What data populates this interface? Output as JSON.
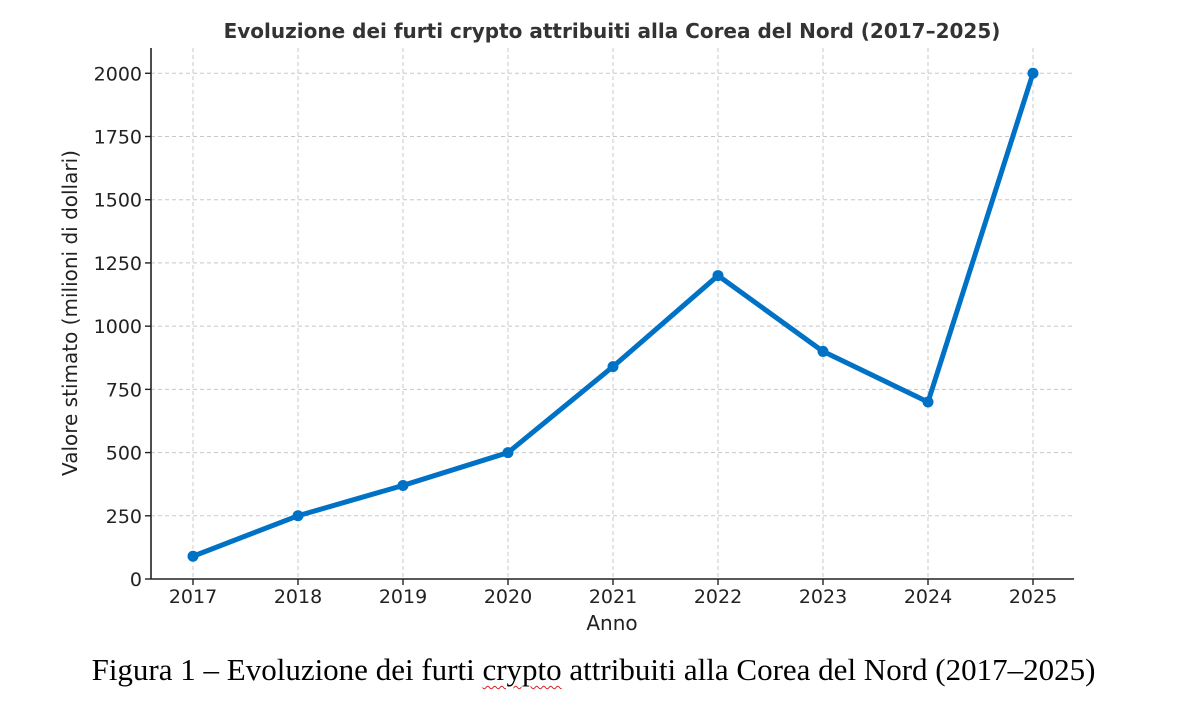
{
  "chart_data": {
    "type": "line",
    "title": "Evoluzione dei furti crypto attribuiti alla Corea del Nord (2017–2025)",
    "xlabel": "Anno",
    "ylabel": "Valore stimato (milioni di dollari)",
    "x": [
      "2017",
      "2018",
      "2019",
      "2020",
      "2021",
      "2022",
      "2023",
      "2024",
      "2025"
    ],
    "series": [
      {
        "values": [
          90,
          250,
          370,
          500,
          840,
          1200,
          900,
          700,
          2000
        ],
        "color": "#0072c6"
      }
    ],
    "ylim": [
      0,
      2100
    ],
    "yticks": [
      "0",
      "250",
      "500",
      "750",
      "1000",
      "1250",
      "1500",
      "1750",
      "2000"
    ],
    "grid": true,
    "legend": "none",
    "line_color": "#0072c6"
  },
  "caption": {
    "before": "Figura 1 – Evoluzione dei furti ",
    "flagged_word": "crypto",
    "after": " attribuiti alla Corea del Nord (2017–2025)"
  }
}
